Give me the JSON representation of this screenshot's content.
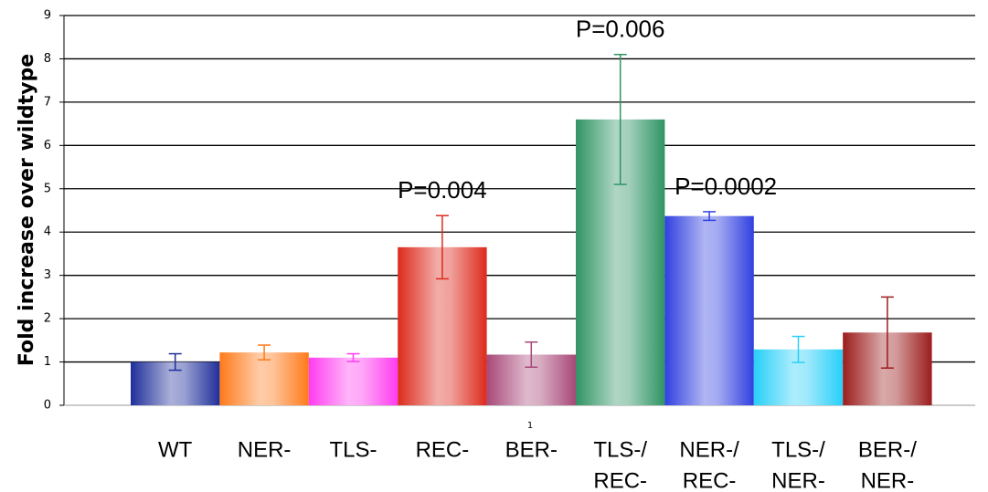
{
  "chart_data": {
    "type": "bar",
    "y_label": "Fold increase over wildtype",
    "x_label": "1",
    "categories": [
      [
        "WT"
      ],
      [
        "NER-"
      ],
      [
        "TLS-"
      ],
      [
        "REC-"
      ],
      [
        "BER-"
      ],
      [
        "TLS-/",
        "REC-"
      ],
      [
        "NER-/",
        "REC-"
      ],
      [
        "TLS-/",
        "NER-"
      ],
      [
        "BER-/",
        "NER-"
      ]
    ],
    "values": [
      1.0,
      1.22,
      1.1,
      3.65,
      1.17,
      6.6,
      4.37,
      1.29,
      1.68
    ],
    "errors": [
      0.19,
      0.17,
      0.09,
      0.73,
      0.29,
      1.5,
      0.1,
      0.3,
      0.82
    ],
    "colors": [
      "#1f2f9a",
      "#ff7a1a",
      "#ff3cf0",
      "#dd2a1c",
      "#a84878",
      "#2f9464",
      "#3040e0",
      "#28cff8",
      "#9c1c1c"
    ],
    "annotations": [
      null,
      null,
      null,
      "P=0.004",
      null,
      "P=0.006",
      "P=0.0002",
      null,
      null
    ],
    "ylim": [
      0,
      9
    ],
    "yticks": [
      0,
      1,
      2,
      3,
      4,
      5,
      6,
      7,
      8,
      9
    ],
    "grid": true
  }
}
